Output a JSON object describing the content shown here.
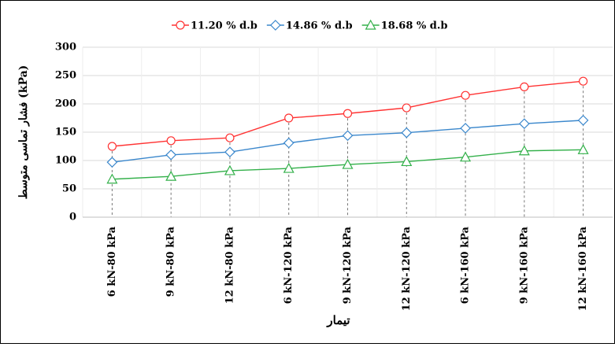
{
  "chart_data": {
    "type": "line",
    "y_label": "فشار تماسی متوسط (kPa)",
    "x_label": "تیمار",
    "categories": [
      "6 kN-80 kPa",
      "9 kN-80 kPa",
      "12 kN-80 kPa",
      "6 kN-120 kPa",
      "9 kN-120 kPa",
      "12 kN-120 kPa",
      "6 kN-160 kPa",
      "9 kN-160 kPa",
      "12 kN-160 kPa"
    ],
    "series": [
      {
        "name": "11.20 % d.b",
        "color": "#ff3333",
        "marker": "circle",
        "values": [
          125,
          135,
          140,
          175,
          183,
          193,
          215,
          230,
          240
        ]
      },
      {
        "name": "14.86 % d.b",
        "color": "#3a87cc",
        "marker": "diamond",
        "values": [
          97,
          110,
          115,
          131,
          144,
          149,
          157,
          165,
          171
        ]
      },
      {
        "name": "18.68 % d.b",
        "color": "#33b04a",
        "marker": "triangle",
        "values": [
          67,
          72,
          82,
          86,
          93,
          98,
          106,
          117,
          119
        ]
      }
    ],
    "ylim": [
      0,
      300
    ],
    "yticks": [
      0,
      50,
      100,
      150,
      200,
      250,
      300
    ],
    "grid": true,
    "legend": "top"
  }
}
